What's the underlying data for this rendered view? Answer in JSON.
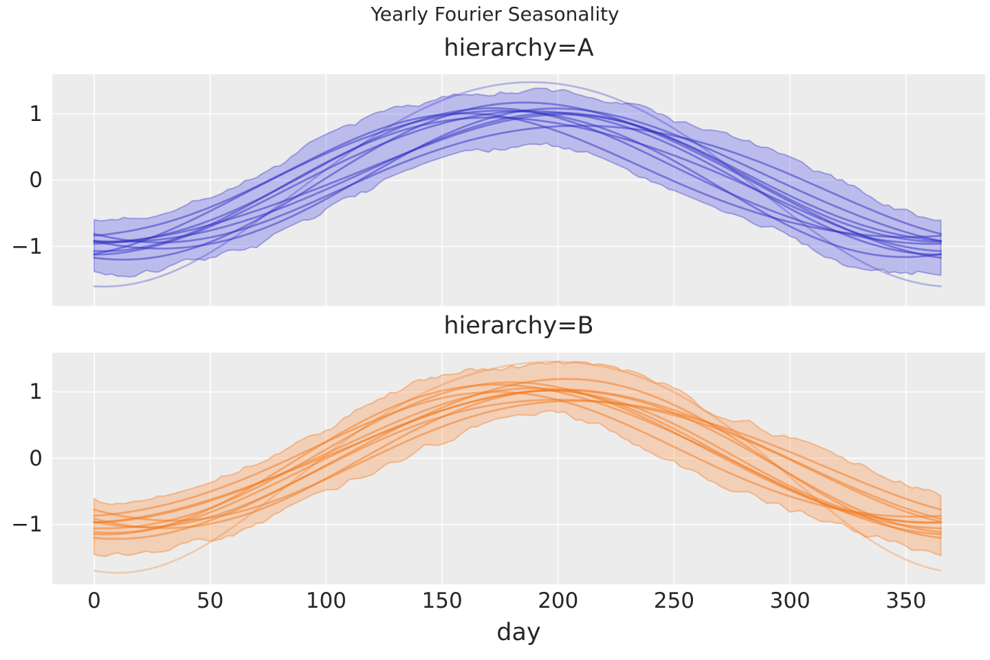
{
  "style": {
    "figure_background": "#ffffff",
    "axes_background": "#ececec",
    "grid_color": "#ffffff",
    "text_color": "#262626"
  },
  "chart_data": {
    "type": "line",
    "suptitle": "Yearly Fourier Seasonality",
    "xlabel": "day",
    "x_ticks": [
      0,
      50,
      100,
      150,
      200,
      250,
      300,
      350
    ],
    "y_ticks": [
      {
        "value": 1,
        "label": "1"
      },
      {
        "value": 0,
        "label": "0"
      },
      {
        "value": -1,
        "label": "−1"
      }
    ],
    "xlim": [
      -18.25,
      383.25
    ],
    "ylim": [
      -1.9,
      1.59
    ],
    "day_range": [
      0,
      365
    ],
    "grid": true,
    "legend": false,
    "curve_model": "y(d) = -a*cos(2*pi*(d-s)/365) - b*cos(4*pi*(d-s2)/365), params [a,s,b,s2]",
    "panels": [
      {
        "title": "hierarchy=A",
        "line_color": "#2d2dc3",
        "line_alpha": 0.5,
        "outlier_alpha": 0.3,
        "fill_color": "#5757ec",
        "fill_alpha": 0.32,
        "band_edge_alpha": 0.35,
        "band_pad": 0.2,
        "band_jitter": 0.065,
        "seed": 7,
        "outlier_curve": [
          1.54,
          5,
          0.065,
          0
        ],
        "curves": [
          [
            1.18,
            8,
            0.05,
            45
          ],
          [
            1.1,
            -12,
            0.07,
            -30
          ],
          [
            1.05,
            22,
            0.06,
            80
          ],
          [
            1.0,
            -2,
            0.09,
            20
          ],
          [
            0.97,
            15,
            0.05,
            -60
          ],
          [
            0.93,
            -20,
            0.08,
            60
          ],
          [
            1.08,
            2,
            0.05,
            -15
          ],
          [
            0.88,
            28,
            0.06,
            30
          ],
          [
            1.02,
            -8,
            0.07,
            70
          ],
          [
            0.95,
            12,
            0.08,
            -45
          ]
        ]
      },
      {
        "title": "hierarchy=B",
        "line_color": "#f47a1b",
        "line_alpha": 0.5,
        "outlier_alpha": 0.3,
        "fill_color": "#ff8b3d",
        "fill_alpha": 0.3,
        "band_edge_alpha": 0.4,
        "band_pad": 0.2,
        "band_jitter": 0.065,
        "seed": 13,
        "outlier_curve": [
          1.59,
          12,
          0.14,
          5
        ],
        "curves": [
          [
            1.2,
            15,
            0.06,
            -25
          ],
          [
            1.12,
            -2,
            0.07,
            35
          ],
          [
            1.04,
            25,
            0.05,
            65
          ],
          [
            0.98,
            5,
            0.08,
            -50
          ],
          [
            0.94,
            -10,
            0.06,
            85
          ],
          [
            1.07,
            12,
            0.07,
            -10
          ],
          [
            0.9,
            30,
            0.05,
            50
          ],
          [
            1.01,
            2,
            0.06,
            -65
          ],
          [
            0.96,
            20,
            0.08,
            25
          ],
          [
            1.1,
            0,
            0.05,
            75
          ]
        ]
      }
    ]
  }
}
